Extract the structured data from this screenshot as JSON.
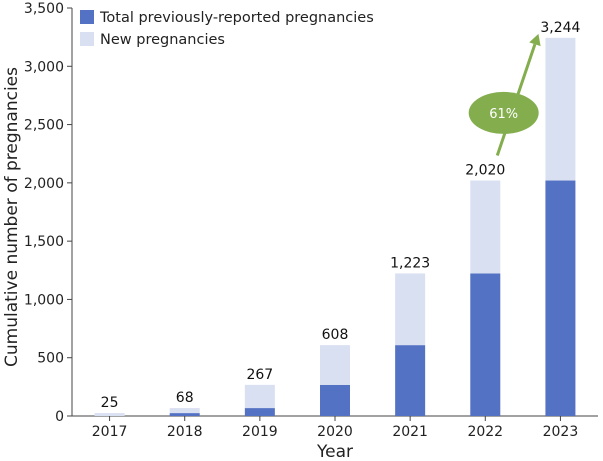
{
  "chart_data": {
    "type": "bar",
    "stacked": true,
    "title": "",
    "xlabel": "Year",
    "ylabel": "Cumulative number of pregnancies",
    "ylim": [
      0,
      3500
    ],
    "yticks": [
      0,
      500,
      1000,
      1500,
      2000,
      2500,
      3000,
      3500
    ],
    "ytick_labels": [
      "0",
      "500",
      "1,000",
      "1,500",
      "2,000",
      "2,500",
      "3,000",
      "3,500"
    ],
    "categories": [
      "2017",
      "2018",
      "2019",
      "2020",
      "2021",
      "2022",
      "2023"
    ],
    "series": [
      {
        "name": "Total previously-reported pregnancies",
        "color": "#5472C4",
        "values": [
          0,
          25,
          68,
          267,
          608,
          1223,
          2020
        ]
      },
      {
        "name": "New pregnancies",
        "color": "#D9E0F1",
        "values": [
          25,
          43,
          199,
          341,
          615,
          797,
          1224
        ]
      }
    ],
    "totals": [
      25,
      68,
      267,
      608,
      1223,
      2020,
      3244
    ],
    "total_labels": [
      "25",
      "68",
      "267",
      "608",
      "1,223",
      "2,020",
      "3,244"
    ],
    "legend_position": "top-left",
    "annotation": {
      "text": "61%",
      "color": "#84AD4E",
      "from_category": "2022",
      "to_category": "2023"
    }
  }
}
